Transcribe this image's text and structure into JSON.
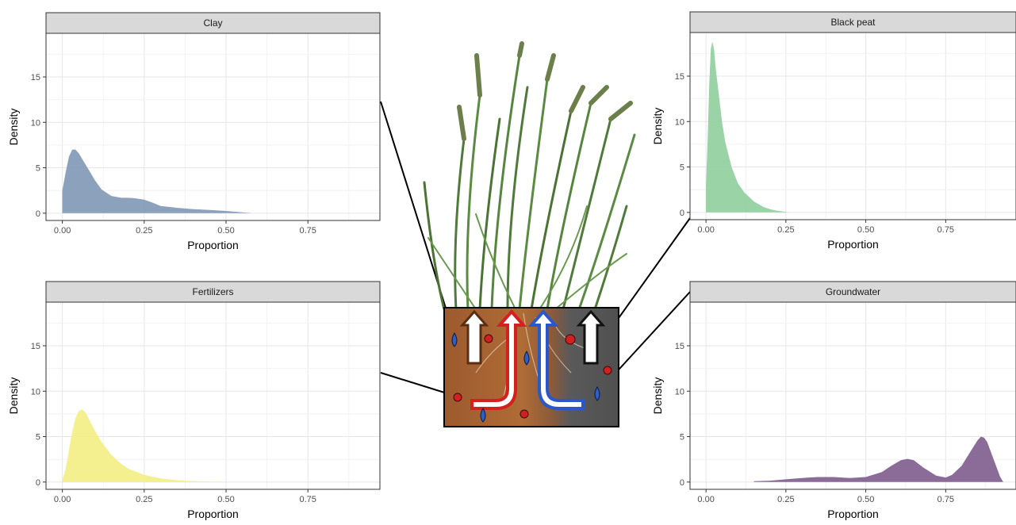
{
  "chart_data": [
    {
      "type": "area",
      "title": "Clay",
      "xlabel": "Proportion",
      "ylabel": "Density",
      "xlim": [
        -0.05,
        0.97
      ],
      "ylim": [
        -0.8,
        19.8
      ],
      "xticks": [
        0,
        0.25,
        0.5,
        0.75
      ],
      "xtick_labels": [
        "0.00",
        "0.25",
        "0.50",
        "0.75"
      ],
      "yticks": [
        0,
        5,
        10,
        15
      ],
      "ytick_labels": [
        "0",
        "5",
        "10",
        "15"
      ],
      "grid": true,
      "color": "#7f97b5",
      "x": [
        0.0,
        0.01,
        0.02,
        0.03,
        0.04,
        0.05,
        0.06,
        0.08,
        0.1,
        0.12,
        0.15,
        0.18,
        0.2,
        0.22,
        0.25,
        0.28,
        0.3,
        0.35,
        0.4,
        0.45,
        0.5,
        0.55,
        0.58
      ],
      "y": [
        2.5,
        4.5,
        6.2,
        7.0,
        7.0,
        6.6,
        6.0,
        4.8,
        3.6,
        2.6,
        1.9,
        1.7,
        1.7,
        1.65,
        1.5,
        1.1,
        0.8,
        0.6,
        0.45,
        0.35,
        0.25,
        0.1,
        0.0
      ]
    },
    {
      "type": "area",
      "title": "Black peat",
      "xlabel": "Proportion",
      "ylabel": "Density",
      "xlim": [
        -0.05,
        0.97
      ],
      "ylim": [
        -0.8,
        19.8
      ],
      "xticks": [
        0,
        0.25,
        0.5,
        0.75
      ],
      "xtick_labels": [
        "0.00",
        "0.25",
        "0.50",
        "0.75"
      ],
      "yticks": [
        0,
        5,
        10,
        15
      ],
      "ytick_labels": [
        "0",
        "5",
        "10",
        "15"
      ],
      "grid": true,
      "color": "#8fcf9c",
      "x": [
        0.0,
        0.005,
        0.01,
        0.015,
        0.02,
        0.025,
        0.03,
        0.04,
        0.05,
        0.06,
        0.08,
        0.1,
        0.12,
        0.15,
        0.18,
        0.2,
        0.22,
        0.25,
        0.26
      ],
      "y": [
        3.0,
        8.0,
        14.0,
        18.0,
        18.8,
        18.0,
        16.0,
        13.0,
        10.0,
        7.8,
        5.0,
        3.2,
        2.2,
        1.2,
        0.6,
        0.35,
        0.2,
        0.05,
        0.0
      ]
    },
    {
      "type": "area",
      "title": "Fertilizers",
      "xlabel": "Proportion",
      "ylabel": "Density",
      "xlim": [
        -0.05,
        0.97
      ],
      "ylim": [
        -0.8,
        19.8
      ],
      "xticks": [
        0,
        0.25,
        0.5,
        0.75
      ],
      "xtick_labels": [
        "0.00",
        "0.25",
        "0.50",
        "0.75"
      ],
      "yticks": [
        0,
        5,
        10,
        15
      ],
      "ytick_labels": [
        "0",
        "5",
        "10",
        "15"
      ],
      "grid": true,
      "color": "#f3ee83",
      "x": [
        0.0,
        0.01,
        0.02,
        0.03,
        0.04,
        0.05,
        0.06,
        0.07,
        0.08,
        0.1,
        0.12,
        0.15,
        0.18,
        0.2,
        0.25,
        0.3,
        0.35,
        0.4,
        0.45,
        0.5
      ],
      "y": [
        0.2,
        1.5,
        3.5,
        5.5,
        7.0,
        7.8,
        8.0,
        7.7,
        7.0,
        5.6,
        4.4,
        3.0,
        2.0,
        1.5,
        0.8,
        0.4,
        0.2,
        0.1,
        0.05,
        0.0
      ]
    },
    {
      "type": "area",
      "title": "Groundwater",
      "xlabel": "Proportion",
      "ylabel": "Density",
      "xlim": [
        -0.05,
        0.97
      ],
      "ylim": [
        -0.8,
        19.8
      ],
      "xticks": [
        0,
        0.25,
        0.5,
        0.75
      ],
      "xtick_labels": [
        "0.00",
        "0.25",
        "0.50",
        "0.75"
      ],
      "yticks": [
        0,
        5,
        10,
        15
      ],
      "ytick_labels": [
        "0",
        "5",
        "10",
        "15"
      ],
      "grid": true,
      "color": "#7e5c8e",
      "x": [
        0.15,
        0.2,
        0.25,
        0.3,
        0.35,
        0.4,
        0.45,
        0.5,
        0.55,
        0.58,
        0.61,
        0.63,
        0.65,
        0.68,
        0.72,
        0.75,
        0.77,
        0.8,
        0.83,
        0.85,
        0.86,
        0.87,
        0.88,
        0.9,
        0.92,
        0.93
      ],
      "y": [
        0.1,
        0.15,
        0.3,
        0.45,
        0.55,
        0.55,
        0.45,
        0.55,
        1.1,
        1.8,
        2.4,
        2.55,
        2.4,
        1.6,
        0.7,
        0.5,
        0.8,
        1.8,
        3.5,
        4.6,
        5.0,
        4.9,
        4.4,
        2.5,
        0.6,
        0.0
      ]
    }
  ],
  "illustration": {
    "description_icons": [
      "grass-plant-icon",
      "soil-column-icon",
      "arrow-up-icon",
      "water-drop-icon",
      "nutrient-dot-icon"
    ],
    "colors": {
      "soil_brown": "#9c5a2e",
      "soil_dark": "#555555",
      "arrow_brown": "#5a2e12",
      "arrow_red": "#d42020",
      "arrow_blue": "#2a58c8",
      "arrow_black": "#111111",
      "drop_blue": "#2f5fc4",
      "dot_red": "#d41f1f",
      "grass_green": "#4f7a3a"
    }
  }
}
